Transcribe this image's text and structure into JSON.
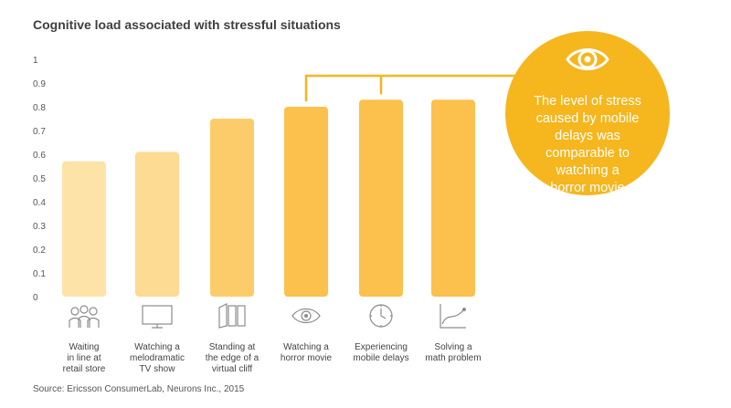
{
  "chart_data": {
    "type": "bar",
    "title": "Cognitive load associated with stressful situations",
    "categories": [
      "Waiting in line at retail store",
      "Watching a melodramatic TV show",
      "Standing at the edge of a virtual cliff",
      "Watching a horror movie",
      "Experiencing mobile delays",
      "Solving a math problem"
    ],
    "category_lines": [
      [
        "Waiting",
        "in line at",
        "retail store"
      ],
      [
        "Watching a",
        "melodramatic",
        "TV show"
      ],
      [
        "Standing at",
        "the edge of a",
        "virtual cliff"
      ],
      [
        "Watching a",
        "horror movie"
      ],
      [
        "Experiencing",
        "mobile delays"
      ],
      [
        "Solving a",
        "math problem"
      ]
    ],
    "values": [
      0.57,
      0.61,
      0.75,
      0.8,
      0.83,
      0.83
    ],
    "bar_colors": [
      "#fde3a7",
      "#fddb92",
      "#fdcc6a",
      "#fcc04c",
      "#fcc04c",
      "#fcc04c"
    ],
    "ylim": [
      0,
      1
    ],
    "yticks": [
      "0",
      "0.1",
      "0.2",
      "0.3",
      "0.4",
      "0.5",
      "0.6",
      "0.7",
      "0.8",
      "0.9",
      "1"
    ],
    "xlabel": "",
    "ylabel": "",
    "grid": false,
    "icons": [
      "people-icon",
      "tv-icon",
      "cliff-panels-icon",
      "eye-icon",
      "clock-icon",
      "graph-icon"
    ],
    "annotation": "The level of stress caused by mobile delays was comparable to watching a horror movie"
  },
  "colors": {
    "accent": "#f5b61e",
    "bracket": "#f5b61e"
  },
  "callout": {
    "lines": [
      "The level of stress",
      "caused by mobile",
      "delays was",
      "comparable to",
      "watching a",
      "horror movie"
    ],
    "icon": "eye-icon"
  },
  "source": "Source: Ericsson ConsumerLab, Neurons Inc., 2015"
}
